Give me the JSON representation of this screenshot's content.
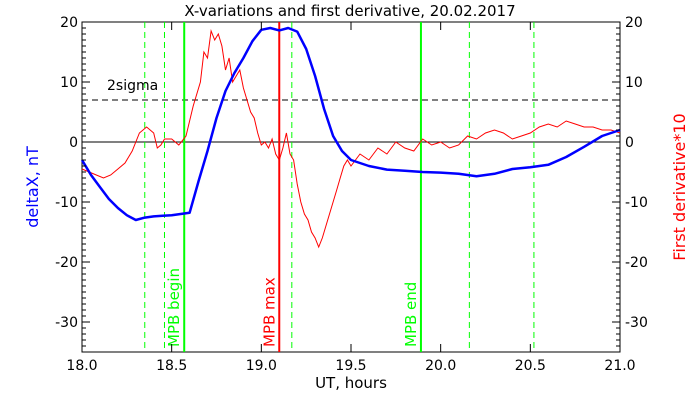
{
  "chart_data": {
    "type": "line",
    "title": "X-variations and first derivative, 20.02.2017",
    "xlabel": "UT, hours",
    "ylabel_left": "deltaX, nT",
    "ylabel_right": "First derivative*10",
    "xlim": [
      18.0,
      21.0
    ],
    "ylim": [
      -35,
      20
    ],
    "x_ticks": [
      "18.0",
      "18.5",
      "19.0",
      "19.5",
      "20.0",
      "20.5",
      "21.0"
    ],
    "y_ticks": [
      "20",
      "10",
      "0",
      "-10",
      "-20",
      "-30"
    ],
    "sigma_level": 7,
    "sigma_label": "2sigma",
    "colors": {
      "deltaX": "#0000ff",
      "derivative": "#ff0000",
      "mpb_boundary": "#00ff00",
      "mpb_max": "#ff0000",
      "dashed_marker": "#00ff00",
      "left_axis_label": "#0000ff",
      "right_axis_label": "#ff0000"
    },
    "series": [
      {
        "name": "deltaX",
        "x": [
          18.0,
          18.05,
          18.1,
          18.15,
          18.2,
          18.25,
          18.3,
          18.35,
          18.4,
          18.45,
          18.5,
          18.55,
          18.6,
          18.65,
          18.7,
          18.75,
          18.8,
          18.85,
          18.9,
          18.95,
          19.0,
          19.05,
          19.1,
          19.15,
          19.2,
          19.25,
          19.3,
          19.35,
          19.4,
          19.45,
          19.5,
          19.6,
          19.7,
          19.8,
          19.9,
          20.0,
          20.1,
          20.2,
          20.3,
          20.4,
          20.5,
          20.6,
          20.7,
          20.8,
          20.9,
          21.0
        ],
        "values": [
          -3,
          -5.5,
          -7.5,
          -9.5,
          -11,
          -12.2,
          -13,
          -12.6,
          -12.4,
          -12.3,
          -12.2,
          -12,
          -11.8,
          -6.5,
          -1.5,
          4,
          8.5,
          11.5,
          14,
          16.8,
          18.7,
          19,
          18.6,
          19,
          18.4,
          15.5,
          11,
          5.5,
          1,
          -1.5,
          -3,
          -4,
          -4.6,
          -4.8,
          -5,
          -5.1,
          -5.3,
          -5.7,
          -5.3,
          -4.5,
          -4.2,
          -3.8,
          -2.5,
          -0.8,
          1,
          2
        ]
      },
      {
        "name": "First derivative*10",
        "x": [
          18.0,
          18.04,
          18.08,
          18.12,
          18.16,
          18.2,
          18.24,
          18.28,
          18.32,
          18.36,
          18.4,
          18.42,
          18.44,
          18.46,
          18.5,
          18.54,
          18.58,
          18.62,
          18.66,
          18.68,
          18.7,
          18.72,
          18.74,
          18.76,
          18.78,
          18.8,
          18.82,
          18.84,
          18.86,
          18.88,
          18.9,
          18.92,
          18.94,
          18.96,
          18.98,
          19.0,
          19.02,
          19.04,
          19.06,
          19.08,
          19.1,
          19.12,
          19.14,
          19.16,
          19.18,
          19.2,
          19.22,
          19.24,
          19.26,
          19.28,
          19.3,
          19.32,
          19.34,
          19.36,
          19.38,
          19.4,
          19.42,
          19.44,
          19.46,
          19.48,
          19.5,
          19.55,
          19.6,
          19.65,
          19.7,
          19.75,
          19.8,
          19.85,
          19.9,
          19.95,
          20.0,
          20.05,
          20.1,
          20.15,
          20.2,
          20.25,
          20.3,
          20.35,
          20.4,
          20.45,
          20.5,
          20.55,
          20.6,
          20.65,
          20.7,
          20.75,
          20.8,
          20.85,
          20.9,
          20.95,
          21.0
        ],
        "values": [
          -4.5,
          -5,
          -5.5,
          -6,
          -5.5,
          -4.5,
          -3.5,
          -1.5,
          1.5,
          2.5,
          1.5,
          -1,
          -0.5,
          0.5,
          0.5,
          -0.5,
          1,
          6,
          10,
          15,
          14,
          18.5,
          17,
          18,
          16,
          12,
          14,
          10,
          11,
          12,
          9,
          7,
          5,
          4,
          1.5,
          -0.5,
          0,
          -1,
          0.5,
          -2,
          -3,
          -1,
          1.5,
          -2,
          -3,
          -7,
          -10,
          -12,
          -13,
          -15,
          -16,
          -17.5,
          -16,
          -14,
          -12,
          -10,
          -8,
          -6,
          -4,
          -3,
          -4,
          -2,
          -3,
          -1,
          -2,
          0,
          -1,
          -1.5,
          0.5,
          -0.5,
          0,
          -1,
          -0.5,
          1,
          0.5,
          1.5,
          2,
          1.5,
          0.5,
          1,
          1.5,
          2.5,
          3,
          2.5,
          3.5,
          3,
          2.5,
          2.5,
          2,
          2,
          1.5
        ]
      }
    ],
    "vertical_markers": [
      {
        "x": 18.57,
        "label": "MPB begin",
        "color": "#00ff00",
        "style": "solid"
      },
      {
        "x": 19.1,
        "label": "MPB max",
        "color": "#ff0000",
        "style": "solid"
      },
      {
        "x": 19.89,
        "label": "MPB end",
        "color": "#00ff00",
        "style": "solid"
      }
    ],
    "dashed_markers": [
      18.35,
      18.46,
      19.17,
      20.16,
      20.52
    ],
    "grid": false
  }
}
